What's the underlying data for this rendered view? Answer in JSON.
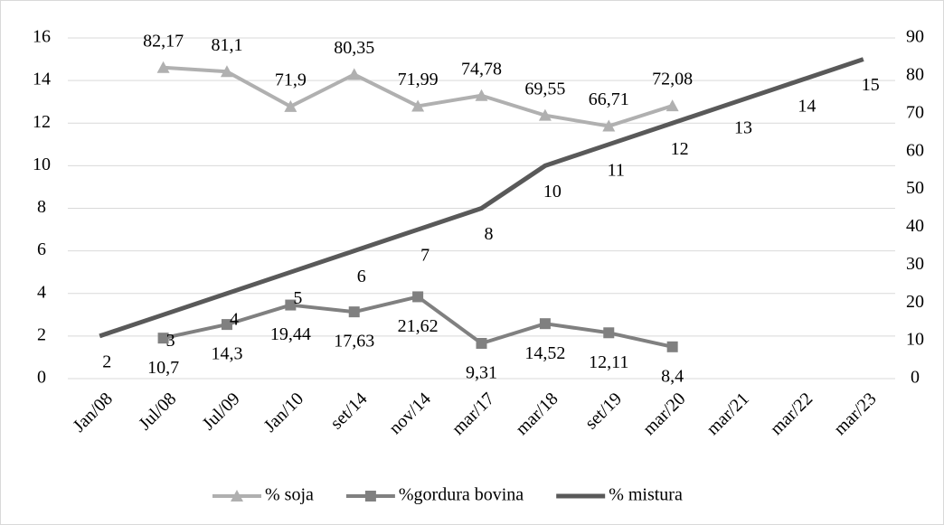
{
  "chart_data": {
    "type": "line",
    "categories": [
      "Jan/08",
      "Jul/08",
      "Jul/09",
      "Jan/10",
      "set/14",
      "nov/14",
      "mar/17",
      "mar/18",
      "set/19",
      "mar/20",
      "mar/21",
      "mar/22",
      "mar/23"
    ],
    "ylim": [
      0,
      16
    ],
    "yticks": [
      0,
      2,
      4,
      6,
      8,
      10,
      12,
      14,
      16
    ],
    "y2lim": [
      0,
      90
    ],
    "y2ticks": [
      0,
      10,
      20,
      30,
      40,
      50,
      60,
      70,
      80,
      90
    ],
    "grid": true,
    "legend": "bottom",
    "series": [
      {
        "name": "% soja",
        "color": "#b0b0b0",
        "marker": "triangle",
        "axis": "y2",
        "values": [
          null,
          82.17,
          81.1,
          71.9,
          80.35,
          71.99,
          74.78,
          69.55,
          66.71,
          72.08,
          null,
          null,
          null
        ],
        "value_labels": [
          null,
          "82,17",
          "81,1",
          "71,9",
          "80,35",
          "71,99",
          "74,78",
          "69,55",
          "66,71",
          "72,08",
          null,
          null,
          null
        ]
      },
      {
        "name": "%gordura bovina",
        "color": "#808080",
        "marker": "square",
        "axis": "y2",
        "values": [
          null,
          10.7,
          14.3,
          19.44,
          17.63,
          21.62,
          9.31,
          14.52,
          12.11,
          8.4,
          null,
          null,
          null
        ],
        "value_labels": [
          null,
          "10,7",
          "14,3",
          "19,44",
          "17,63",
          "21,62",
          "9,31",
          "14,52",
          "12,11",
          "8,4",
          null,
          null,
          null
        ]
      },
      {
        "name": "% mistura",
        "color": "#595959",
        "marker": "none",
        "values": [
          2,
          3,
          4,
          5,
          6,
          7,
          8,
          10,
          11,
          12,
          13,
          14,
          15
        ]
      }
    ]
  }
}
